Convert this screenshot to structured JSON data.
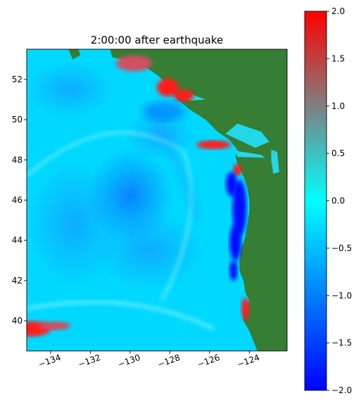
{
  "chart_data": {
    "type": "heatmap",
    "title": "2:00:00 after earthquake",
    "xlabel": "",
    "ylabel": "",
    "xlim": [
      -135.2,
      -122.1
    ],
    "ylim": [
      38.5,
      53.5
    ],
    "x_ticks": [
      {
        "value": -134,
        "label": "−134"
      },
      {
        "value": -132,
        "label": "−132"
      },
      {
        "value": -130,
        "label": "−130"
      },
      {
        "value": -128,
        "label": "−128"
      },
      {
        "value": -126,
        "label": "−126"
      },
      {
        "value": -124,
        "label": "−124"
      }
    ],
    "y_ticks": [
      {
        "value": 40,
        "label": "40"
      },
      {
        "value": 42,
        "label": "42"
      },
      {
        "value": 44,
        "label": "44"
      },
      {
        "value": 46,
        "label": "46"
      },
      {
        "value": 48,
        "label": "48"
      },
      {
        "value": 50,
        "label": "50"
      },
      {
        "value": 52,
        "label": "52"
      }
    ],
    "x_tick_rotation_deg": -20,
    "grid": false,
    "colorbar": {
      "range": [
        -2.0,
        2.0
      ],
      "ticks": [
        {
          "value": 2.0,
          "label": "2.0"
        },
        {
          "value": 1.5,
          "label": "1.5"
        },
        {
          "value": 1.0,
          "label": "1.0"
        },
        {
          "value": 0.5,
          "label": "0.5"
        },
        {
          "value": 0.0,
          "label": "0.0"
        },
        {
          "value": -0.5,
          "label": "−0.5"
        },
        {
          "value": -1.0,
          "label": "−1.0"
        },
        {
          "value": -1.5,
          "label": "−1.5"
        },
        {
          "value": -2.0,
          "label": "−2.0"
        }
      ],
      "colormap": [
        "#0000ff",
        "#00ffff",
        "#ff0000"
      ]
    },
    "colors": {
      "land": "#357e33",
      "ocean_base": "#00d8ff",
      "ocean_mid": "#1f9fff",
      "ocean_low": "#0060ff",
      "trough": "#0010ff",
      "crest": "#ff1a1a",
      "crest_soft": "#d05060",
      "shallow": "#22d8e8"
    }
  }
}
